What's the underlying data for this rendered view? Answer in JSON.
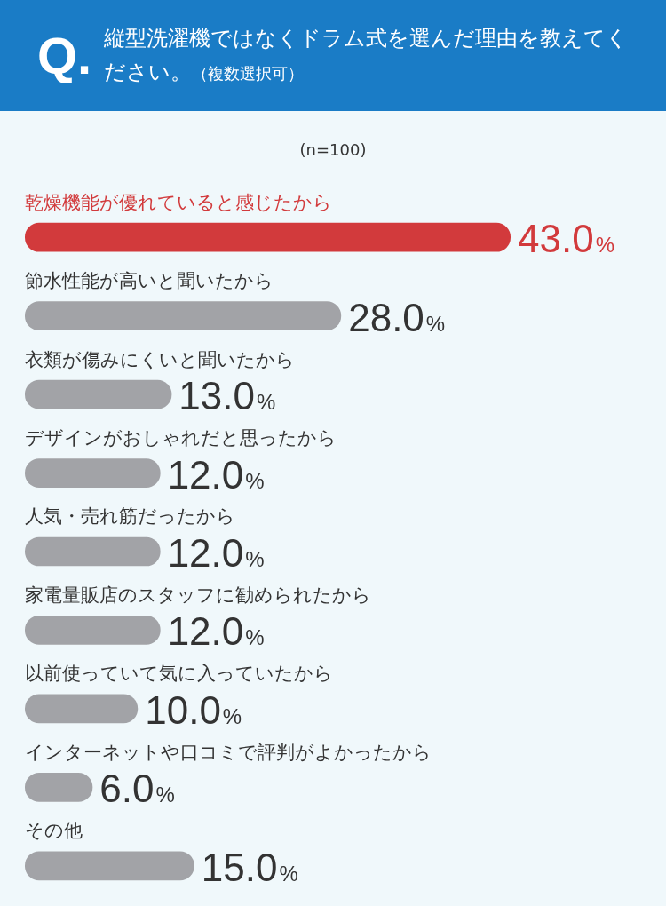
{
  "chart_data": {
    "type": "bar",
    "orientation": "horizontal",
    "title": "Q. 縦型洗濯機ではなくドラム式を選んだ理由を教えてください。（複数選択可）",
    "subtitle": "(n=100)",
    "categories": [
      "乾燥機能が優れていると感じたから",
      "節水性能が高いと聞いたから",
      "衣類が傷みにくいと聞いたから",
      "デザインがおしゃれだと思ったから",
      "人気・売れ筋だったから",
      "家電量販店のスタッフに勧められたから",
      "以前使っていて気に入っていたから",
      "インターネットや口コミで評判がよかったから",
      "その他"
    ],
    "values": [
      43.0,
      28.0,
      13.0,
      12.0,
      12.0,
      12.0,
      10.0,
      6.0,
      15.0
    ],
    "value_labels": [
      "43.0%",
      "28.0%",
      "13.0%",
      "12.0%",
      "12.0%",
      "12.0%",
      "10.0%",
      "6.0%",
      "15.0%"
    ],
    "colors": [
      "#d23a3c",
      "#a2a3a7",
      "#a2a3a7",
      "#a2a3a7",
      "#a2a3a7",
      "#a2a3a7",
      "#a2a3a7",
      "#a2a3a7",
      "#a2a3a7"
    ],
    "xlim": [
      0,
      43
    ]
  }
}
